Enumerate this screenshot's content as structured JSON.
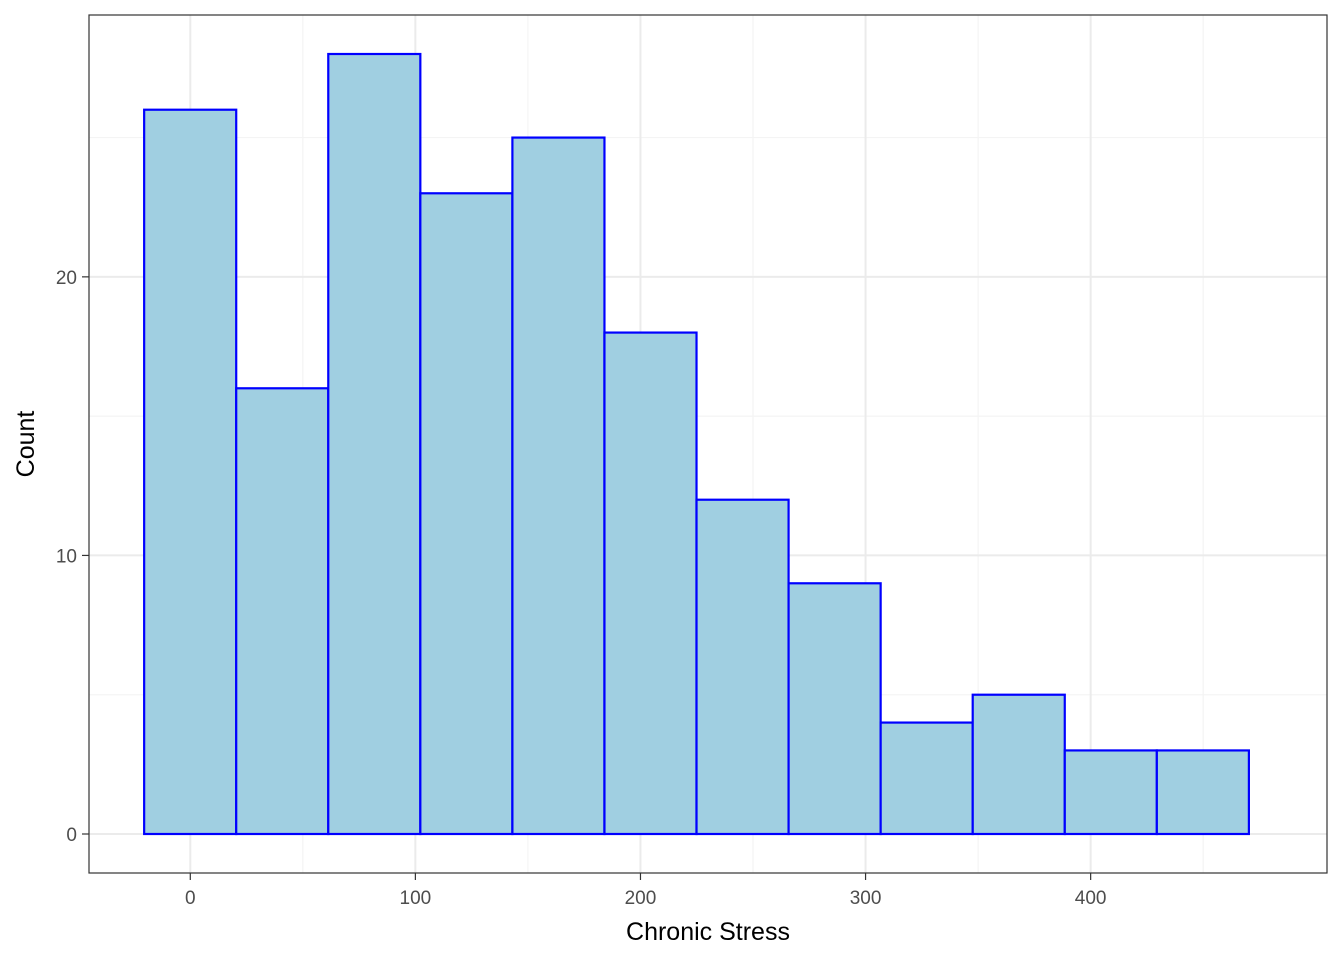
{
  "chart_data": {
    "type": "bar",
    "title": "",
    "xlabel": "Chronic Stress",
    "ylabel": "Count",
    "bin_width": 40.9,
    "bins": [
      {
        "x0": -20.5,
        "x1": 20.4,
        "count": 26
      },
      {
        "x0": 20.4,
        "x1": 61.3,
        "count": 16
      },
      {
        "x0": 61.3,
        "x1": 102.2,
        "count": 28
      },
      {
        "x0": 102.2,
        "x1": 143.1,
        "count": 23
      },
      {
        "x0": 143.1,
        "x1": 184.0,
        "count": 25
      },
      {
        "x0": 184.0,
        "x1": 224.9,
        "count": 18
      },
      {
        "x0": 224.9,
        "x1": 265.8,
        "count": 12
      },
      {
        "x0": 265.8,
        "x1": 306.7,
        "count": 9
      },
      {
        "x0": 306.7,
        "x1": 347.6,
        "count": 4
      },
      {
        "x0": 347.6,
        "x1": 388.5,
        "count": 5
      },
      {
        "x0": 388.5,
        "x1": 429.4,
        "count": 3
      },
      {
        "x0": 429.4,
        "x1": 470.3,
        "count": 3
      }
    ],
    "xlim": [
      -45,
      505
    ],
    "ylim": [
      -1.4,
      29.4
    ],
    "x_ticks": [
      0,
      100,
      200,
      300,
      400
    ],
    "x_tick_labels": [
      "0",
      "100",
      "200",
      "300",
      "400"
    ],
    "y_ticks": [
      0,
      10,
      20
    ],
    "y_tick_labels": [
      "0",
      "10",
      "20"
    ],
    "x_minor_ticks": [
      50,
      150,
      250,
      350,
      450
    ],
    "y_minor_ticks": [
      5,
      15,
      25
    ],
    "grid": true,
    "legend": "none",
    "colors": {
      "bar_fill": "#a0cfe1",
      "bar_stroke": "#0000ff",
      "grid_major": "#ebebeb",
      "grid_minor": "#f4f4f4",
      "panel_border": "#333333",
      "tick_text": "#4d4d4d"
    }
  }
}
